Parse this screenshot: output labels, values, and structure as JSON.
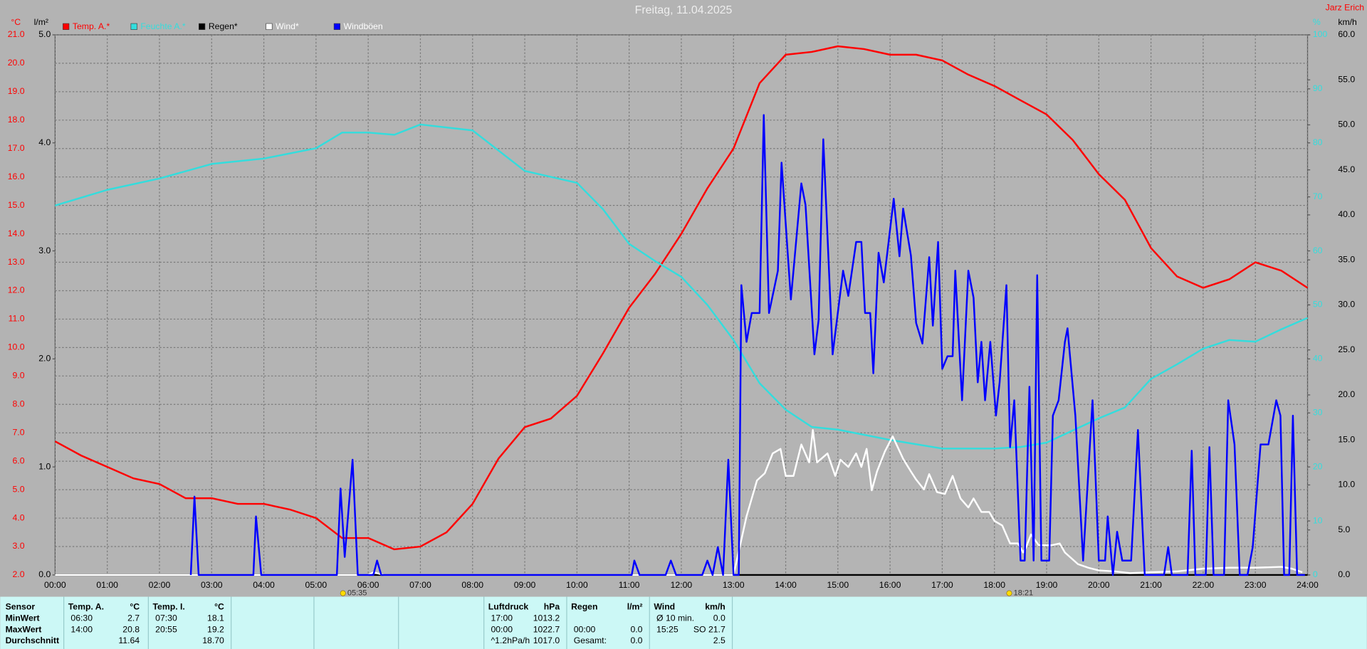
{
  "chart_data": {
    "type": "line",
    "title": "Freitag, 11.04.2025",
    "author": "Jarz Erich",
    "y_label": "°C",
    "y2_label": "l/m²",
    "y3_label": "%",
    "y4_label": "km/h",
    "grid": true,
    "xlim": [
      0,
      24
    ],
    "xticks": [
      {
        "value": 0,
        "label": "00:00"
      },
      {
        "value": 1,
        "label": "01:00"
      },
      {
        "value": 2,
        "label": "02:00"
      },
      {
        "value": 3,
        "label": "03:00"
      },
      {
        "value": 4,
        "label": "04:00"
      },
      {
        "value": 5,
        "label": "05:00"
      },
      {
        "value": 6,
        "label": "06:00"
      },
      {
        "value": 7,
        "label": "07:00"
      },
      {
        "value": 8,
        "label": "08:00"
      },
      {
        "value": 9,
        "label": "09:00"
      },
      {
        "value": 10,
        "label": "10:00"
      },
      {
        "value": 11,
        "label": "11:00"
      },
      {
        "value": 12,
        "label": "12:00"
      },
      {
        "value": 13,
        "label": "13:00"
      },
      {
        "value": 14,
        "label": "14:00"
      },
      {
        "value": 15,
        "label": "15:00"
      },
      {
        "value": 16,
        "label": "16:00"
      },
      {
        "value": 17,
        "label": "17:00"
      },
      {
        "value": 18,
        "label": "18:00"
      },
      {
        "value": 19,
        "label": "19:00"
      },
      {
        "value": 20,
        "label": "20:00"
      },
      {
        "value": 21,
        "label": "21:00"
      },
      {
        "value": 22,
        "label": "22:00"
      },
      {
        "value": 23,
        "label": "23:00"
      },
      {
        "value": 24,
        "label": "24:00"
      }
    ],
    "ylim": [
      2,
      21
    ],
    "yticks": [
      {
        "value": 2,
        "label": "2.0"
      },
      {
        "value": 3,
        "label": "3.0"
      },
      {
        "value": 4,
        "label": "4.0"
      },
      {
        "value": 5,
        "label": "5.0"
      },
      {
        "value": 6,
        "label": "6.0"
      },
      {
        "value": 7,
        "label": "7.0"
      },
      {
        "value": 8,
        "label": "8.0"
      },
      {
        "value": 9,
        "label": "9.0"
      },
      {
        "value": 10,
        "label": "10.0"
      },
      {
        "value": 11,
        "label": "11.0"
      },
      {
        "value": 12,
        "label": "12.0"
      },
      {
        "value": 13,
        "label": "13.0"
      },
      {
        "value": 14,
        "label": "14.0"
      },
      {
        "value": 15,
        "label": "15.0"
      },
      {
        "value": 16,
        "label": "16.0"
      },
      {
        "value": 17,
        "label": "17.0"
      },
      {
        "value": 18,
        "label": "18.0"
      },
      {
        "value": 19,
        "label": "19.0"
      },
      {
        "value": 20,
        "label": "20.0"
      },
      {
        "value": 21,
        "label": "21.0"
      }
    ],
    "y2lim": [
      0,
      5
    ],
    "y2ticks": [
      {
        "value": 0,
        "label": "0.0"
      },
      {
        "value": 1,
        "label": "1.0"
      },
      {
        "value": 2,
        "label": "2.0"
      },
      {
        "value": 3,
        "label": "3.0"
      },
      {
        "value": 4,
        "label": "4.0"
      },
      {
        "value": 5,
        "label": "5.0"
      }
    ],
    "y3lim": [
      0,
      100
    ],
    "y3ticks": [
      0,
      10,
      20,
      30,
      40,
      50,
      60,
      70,
      80,
      90,
      100
    ],
    "y4lim": [
      0,
      60
    ],
    "y4ticks": [
      {
        "value": 0,
        "label": "0.0"
      },
      {
        "value": 5,
        "label": "5.0"
      },
      {
        "value": 10,
        "label": "10.0"
      },
      {
        "value": 15,
        "label": "15.0"
      },
      {
        "value": 20,
        "label": "20.0"
      },
      {
        "value": 25,
        "label": "25.0"
      },
      {
        "value": 30,
        "label": "30.0"
      },
      {
        "value": 35,
        "label": "35.0"
      },
      {
        "value": 40,
        "label": "40.0"
      },
      {
        "value": 45,
        "label": "45.0"
      },
      {
        "value": 50,
        "label": "50.0"
      },
      {
        "value": 55,
        "label": "55.0"
      },
      {
        "value": 60,
        "label": "60.0"
      }
    ],
    "sun_events": [
      {
        "label": "05:35"
      },
      {
        "label": "18:21"
      }
    ],
    "series": [
      {
        "name": "Temp. A.*",
        "color": "#ff0000",
        "axis": "y",
        "x": [
          0,
          0.5,
          1,
          1.5,
          2,
          2.5,
          3,
          3.5,
          4,
          4.5,
          5,
          5.5,
          6,
          6.5,
          7,
          7.5,
          8,
          8.5,
          9,
          9.5,
          10,
          10.5,
          11,
          11.5,
          12,
          12.5,
          13,
          13.5,
          14,
          14.5,
          15,
          15.5,
          16,
          16.5,
          17,
          17.5,
          18,
          18.5,
          19,
          19.5,
          20,
          20.5,
          21,
          21.5,
          22,
          22.5,
          23,
          23.5,
          24
        ],
        "values": [
          6.7,
          6.2,
          5.8,
          5.4,
          5.2,
          4.7,
          4.7,
          4.5,
          4.5,
          4.3,
          4.0,
          3.3,
          3.3,
          2.9,
          3.0,
          3.5,
          4.5,
          6.1,
          7.2,
          7.5,
          8.3,
          9.8,
          11.4,
          12.6,
          14.0,
          15.6,
          17.0,
          19.3,
          20.3,
          20.4,
          20.6,
          20.5,
          20.3,
          20.3,
          20.1,
          19.6,
          19.2,
          18.7,
          18.2,
          17.3,
          16.1,
          15.2,
          13.5,
          12.5,
          12.1,
          12.4,
          13.0,
          12.7,
          12.1
        ]
      },
      {
        "name": "Feuchte A.*",
        "color": "#33dddd",
        "axis": "y3",
        "x": [
          0,
          1,
          2,
          3,
          4,
          5,
          5.5,
          6,
          6.5,
          7,
          8,
          9,
          10,
          10.5,
          11,
          11.5,
          12,
          12.5,
          13,
          13.5,
          14,
          14.5,
          15,
          16,
          17,
          18,
          18.5,
          19,
          20,
          20.5,
          21,
          21.5,
          22,
          22.5,
          23,
          23.5,
          24
        ],
        "values": [
          68.4,
          71.3,
          73.4,
          76.1,
          77.1,
          79,
          81.9,
          81.9,
          81.5,
          83.4,
          82.3,
          74.8,
          72.6,
          67.7,
          61.3,
          58.1,
          55.2,
          50,
          43.5,
          35.5,
          30.6,
          27.4,
          26.9,
          25,
          23.4,
          23.4,
          23.7,
          24.5,
          29,
          31,
          36.3,
          39,
          41.9,
          43.5,
          43.2,
          45.5,
          47.6
        ]
      },
      {
        "name": "Regen*",
        "color": "#000000",
        "axis": "y2",
        "x": [
          0,
          24
        ],
        "values": [
          0,
          0
        ]
      },
      {
        "name": "Wind*",
        "color": "#ffffff",
        "axis": "y4",
        "x": [
          0,
          6,
          6.1,
          6.3,
          13,
          13.25,
          13.45,
          13.6,
          13.75,
          13.9,
          14,
          14.15,
          14.3,
          14.45,
          14.52,
          14.6,
          14.8,
          14.95,
          15.05,
          15.2,
          15.35,
          15.45,
          15.55,
          15.65,
          15.75,
          15.9,
          16.05,
          16.25,
          16.4,
          16.5,
          16.65,
          16.75,
          16.9,
          17.05,
          17.2,
          17.35,
          17.5,
          17.6,
          17.75,
          17.9,
          18,
          18.15,
          18.3,
          18.45,
          18.55,
          18.6,
          18.7,
          18.85,
          19.1,
          19.25,
          19.35,
          19.6,
          19.8,
          20,
          20.3,
          20.6,
          21,
          21.5,
          22,
          22.5,
          23,
          23.5,
          23.7,
          23.9
        ],
        "values": [
          0,
          0,
          0.3,
          0,
          0,
          6.5,
          10.5,
          11.3,
          13.5,
          14,
          11,
          11,
          14.5,
          12.5,
          16.1,
          12.5,
          13.5,
          11,
          12.8,
          12,
          13.5,
          12,
          14,
          9.4,
          11.5,
          13.7,
          15.4,
          12.9,
          11.5,
          10.6,
          9.5,
          11.2,
          9.2,
          9,
          11,
          8.5,
          7.5,
          8.5,
          7,
          7,
          6,
          5.5,
          3.5,
          3.5,
          2.5,
          3,
          4.5,
          3.3,
          3.3,
          3.5,
          2.5,
          1.2,
          0.8,
          0.5,
          0.4,
          0.2,
          0.3,
          0.4,
          0.7,
          0.8,
          0.8,
          0.9,
          0.7,
          0.3
        ]
      },
      {
        "name": "Windböen",
        "color": "#0000ff",
        "axis": "y4",
        "x": [
          2.6,
          2.67,
          2.75,
          3.8,
          3.85,
          3.95,
          5.4,
          5.47,
          5.55,
          5.7,
          5.8,
          6.1,
          6.17,
          6.25,
          11.05,
          11.1,
          11.2,
          11.7,
          11.8,
          11.9,
          12.4,
          12.5,
          12.6,
          12.7,
          12.8,
          12.9,
          13,
          13.1,
          13.15,
          13.25,
          13.35,
          13.5,
          13.58,
          13.68,
          13.85,
          13.92,
          14.1,
          14.3,
          14.38,
          14.55,
          14.63,
          14.72,
          14.9,
          15.1,
          15.2,
          15.35,
          15.45,
          15.52,
          15.62,
          15.68,
          15.78,
          15.88,
          16.07,
          16.18,
          16.25,
          16.4,
          16.5,
          16.62,
          16.75,
          16.82,
          16.92,
          17,
          17.1,
          17.2,
          17.25,
          17.38,
          17.5,
          17.6,
          17.68,
          17.75,
          17.82,
          17.92,
          18.03,
          18.1,
          18.23,
          18.3,
          18.38,
          18.5,
          18.58,
          18.67,
          18.75,
          18.82,
          18.9,
          19.05,
          19.12,
          19.23,
          19.35,
          19.4,
          19.55,
          19.7,
          19.88,
          20,
          20.12,
          20.17,
          20.27,
          20.35,
          20.45,
          20.62,
          20.75,
          20.88,
          21.25,
          21.33,
          21.4,
          21.6,
          21.7,
          21.78,
          21.85,
          22.05,
          22.12,
          22.2,
          22.4,
          22.48,
          22.6,
          22.7,
          22.85,
          22.95,
          23.1,
          23.25,
          23.4,
          23.48,
          23.55,
          23.65,
          23.72,
          23.8,
          23.95
        ],
        "values": [
          0,
          8.7,
          0,
          0,
          6.5,
          0,
          0,
          9.6,
          2,
          12.8,
          0,
          0,
          1.6,
          0,
          0,
          1.6,
          0,
          0,
          1.6,
          0,
          0,
          1.6,
          0,
          3.1,
          0,
          12.8,
          0,
          0,
          32.2,
          25.9,
          29.1,
          29.1,
          51.1,
          29.1,
          33.8,
          45.8,
          30.6,
          43.5,
          41.1,
          24.5,
          28.3,
          48.4,
          24.5,
          33.8,
          31,
          37,
          37,
          29.1,
          29.1,
          22.4,
          35.8,
          32.5,
          41.8,
          35.4,
          40.7,
          35.5,
          28,
          25.7,
          35.3,
          27.7,
          37,
          22.9,
          24.3,
          24.3,
          33.8,
          19.4,
          33.8,
          30.8,
          21.4,
          25.9,
          19.4,
          25.9,
          17.7,
          21.4,
          32.2,
          14.2,
          19.4,
          1.6,
          1.6,
          20.9,
          1.6,
          33.3,
          1.6,
          1.6,
          17.7,
          19.4,
          25.9,
          27.4,
          17.7,
          1.6,
          19.4,
          1.6,
          1.6,
          6.5,
          0,
          4.8,
          1.6,
          1.6,
          16.1,
          0,
          0,
          3.1,
          0,
          0,
          0,
          13.8,
          0,
          0,
          14.2,
          0,
          0,
          19.4,
          14.5,
          0,
          0,
          3.1,
          14.5,
          14.5,
          19.4,
          17.7,
          0,
          0,
          17.7,
          0,
          0
        ]
      }
    ]
  },
  "stats": {
    "row_labels": [
      "Sensor",
      "MinWert",
      "MaxWert",
      "Durchschnitt"
    ],
    "groups": [
      {
        "name": "Temp. A.",
        "unit": "°C",
        "rows": [
          [
            "06:30",
            "2.7"
          ],
          [
            "14:00",
            "20.8"
          ],
          [
            null,
            "11.64"
          ]
        ]
      },
      {
        "name": "Temp. I.",
        "unit": "°C",
        "rows": [
          [
            "07:30",
            "18.1"
          ],
          [
            "20:55",
            "19.2"
          ],
          [
            null,
            "18.70"
          ]
        ]
      },
      {
        "name": "Luftdruck",
        "unit": "hPa",
        "rows": [
          [
            "17:00",
            "1013.2"
          ],
          [
            "00:00",
            "1022.7"
          ],
          [
            "^1.2hPa/h",
            "1017.0"
          ]
        ]
      },
      {
        "name": "Regen",
        "unit": "l/m²",
        "rows": [
          [
            null,
            null
          ],
          [
            "00:00",
            "0.0"
          ],
          [
            "Gesamt:",
            "0.0"
          ]
        ]
      },
      {
        "name": "Wind",
        "unit": "km/h",
        "rows": [
          [
            "Ø 10 min.",
            "0.0"
          ],
          [
            "15:25",
            "SO 21.7"
          ],
          [
            null,
            "2.5"
          ]
        ]
      }
    ]
  }
}
